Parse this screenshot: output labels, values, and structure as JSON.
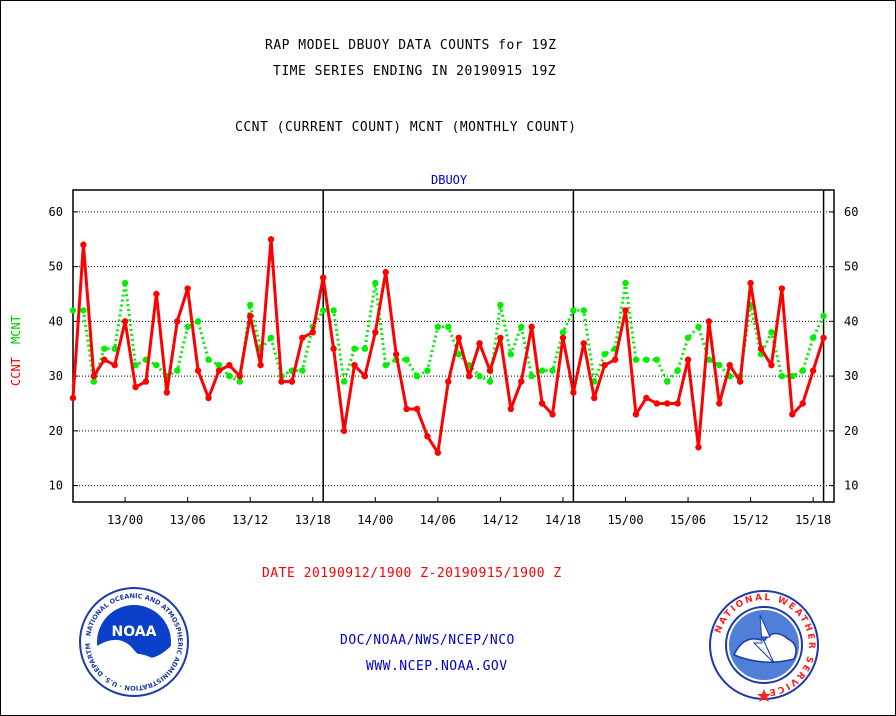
{
  "header": {
    "title_line1": "RAP MODEL DBUOY DATA COUNTS for 19Z",
    "title_line2": "TIME SERIES ENDING IN 20190915 19Z",
    "subtitle": "CCNT (CURRENT COUNT) MCNT (MONTHLY COUNT)"
  },
  "footer": {
    "date_range": "DATE 20190912/1900 Z-20190915/1900 Z",
    "org": "DOC/NOAA/NWS/NCEP/NCO",
    "url": "WWW.NCEP.NOAA.GOV",
    "noaa_logo_text": "NOAA",
    "noaa_seal_text": "NATIONAL OCEANIC AND ATMOSPHERIC ADMINISTRATION · U.S. DEPARTMENT OF COMMERCE",
    "nws_seal_text": "NATIONAL WEATHER SERVICE"
  },
  "colors": {
    "ccnt": "#ff0000",
    "mcnt": "#00ee00",
    "title": "#000000",
    "plot_label": "#0000cc",
    "date": "#ff0000",
    "link": "#0000cc"
  },
  "chart_data": {
    "type": "line",
    "title": "DBUOY",
    "ylabel_ccnt": "CCNT",
    "ylabel_mcnt": "MCNT",
    "ylim": [
      7,
      64
    ],
    "yticks": [
      10,
      20,
      30,
      40,
      50,
      60
    ],
    "grid": true,
    "x_start_hours": -5,
    "x_end_hours": 68,
    "x_tick_hours": [
      0,
      6,
      12,
      18,
      24,
      30,
      36,
      42,
      48,
      54,
      60,
      66
    ],
    "x_tick_labels": [
      "13/00",
      "13/06",
      "13/12",
      "13/18",
      "14/00",
      "14/06",
      "14/12",
      "14/18",
      "15/00",
      "15/06",
      "15/12",
      "15/18"
    ],
    "day_boundary_hours": [
      19,
      43,
      67
    ],
    "series": [
      {
        "name": "CCNT",
        "color": "#ff0000",
        "values": [
          26,
          54,
          30,
          33,
          32,
          40,
          28,
          29,
          45,
          27,
          40,
          46,
          31,
          26,
          31,
          32,
          30,
          41,
          32,
          55,
          29,
          29,
          37,
          38,
          48,
          35,
          20,
          32,
          30,
          38,
          49,
          34,
          24,
          24,
          19,
          16,
          29,
          37,
          30,
          36,
          31,
          37,
          24,
          29,
          39,
          25,
          23,
          37,
          27,
          36,
          26,
          32,
          33,
          42,
          23,
          26,
          25,
          25,
          25,
          33,
          17,
          40,
          25,
          32,
          29,
          47,
          35,
          32,
          46,
          23,
          25,
          31,
          37
        ]
      },
      {
        "name": "MCNT",
        "color": "#00ee00",
        "values": [
          42,
          42,
          29,
          35,
          35,
          47,
          32,
          33,
          32,
          30,
          31,
          39,
          40,
          33,
          32,
          30,
          29,
          43,
          35,
          37,
          30,
          31,
          31,
          39,
          42,
          42,
          29,
          35,
          35,
          47,
          32,
          33,
          33,
          30,
          31,
          39,
          39,
          34,
          32,
          30,
          29,
          43,
          34,
          39,
          30,
          31,
          31,
          38,
          42,
          42,
          29,
          34,
          35,
          47,
          33,
          33,
          33,
          29,
          31,
          37,
          39,
          33,
          32,
          30,
          30,
          43,
          34,
          38,
          30,
          30,
          31,
          37,
          41
        ]
      }
    ]
  }
}
